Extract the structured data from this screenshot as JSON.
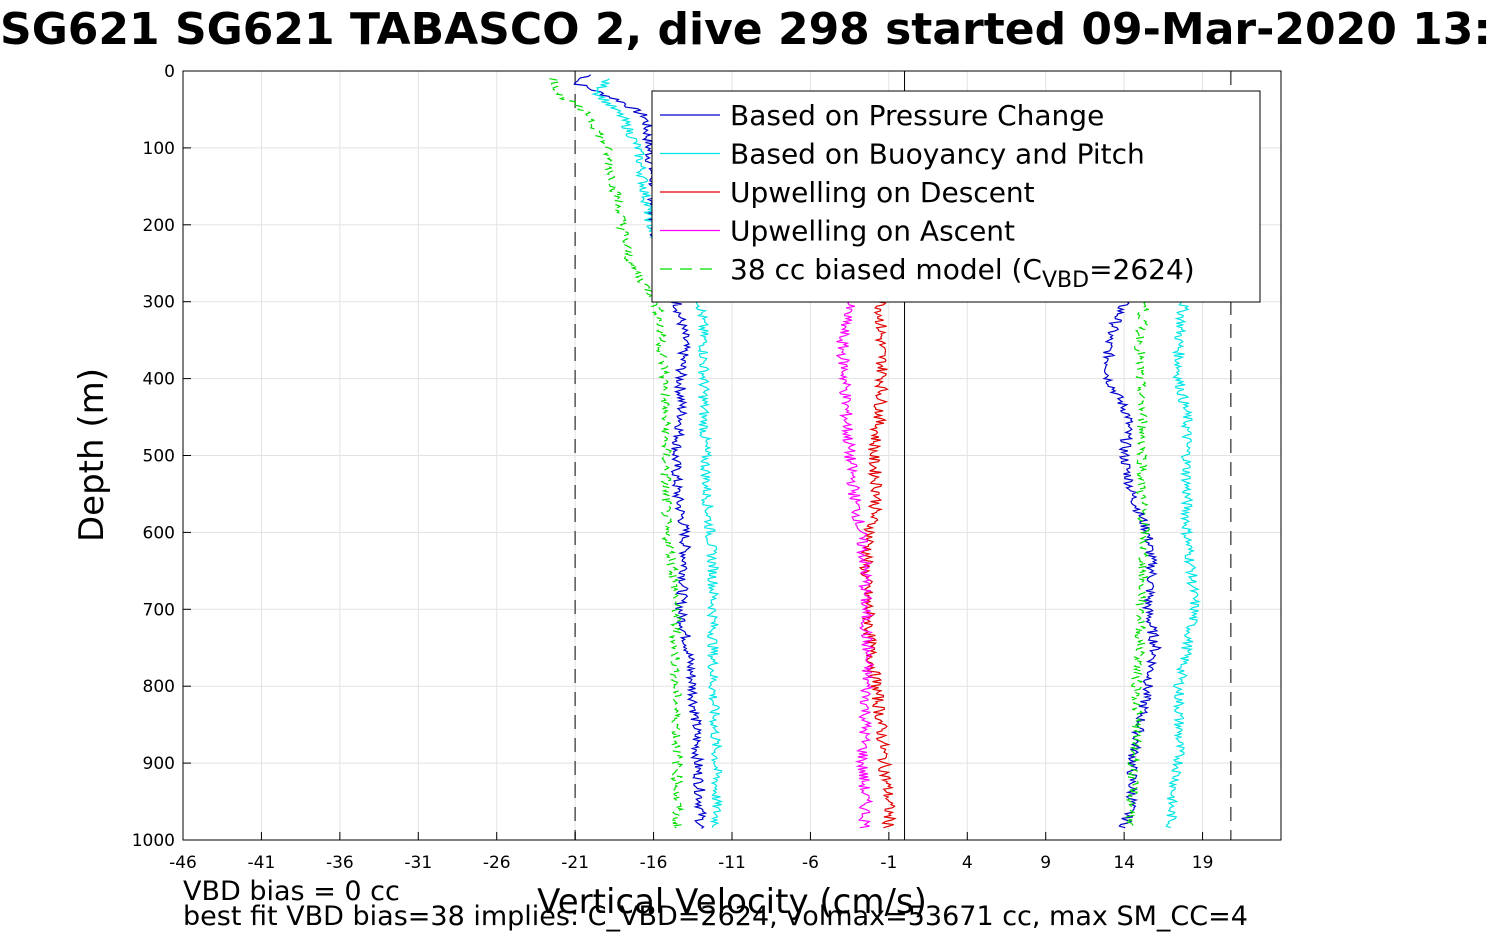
{
  "title": "SG621 SG621 TABASCO 2, dive 298 started 09-Mar-2020 13:",
  "notes": {
    "bias": "VBD bias = 0 cc",
    "bestfit": "best fit VBD bias=38 implies: C_VBD=2624, volmax=53671 cc, max SM_CC=4"
  },
  "chart_data": {
    "type": "line",
    "title": "SG621 SG621 TABASCO 2, dive 298 started 09-Mar-2020 13:",
    "xlabel": "Vertical Velocity (cm/s)",
    "ylabel": "Depth (m)",
    "xlim": [
      -46,
      24
    ],
    "ylim": [
      0,
      1000
    ],
    "y_reversed": true,
    "x_ticks": [
      "-46",
      "-41",
      "-36",
      "-31",
      "-26",
      "-21",
      "-16",
      "-11",
      "-6",
      "-1",
      "4",
      "9",
      "14",
      "19"
    ],
    "y_ticks": [
      "0",
      "100",
      "200",
      "300",
      "400",
      "500",
      "600",
      "700",
      "800",
      "900",
      "1000"
    ],
    "grid": true,
    "legend_position": "top-right",
    "reference_lines": {
      "vertical_solid_x": 0,
      "vertical_dashed_x": [
        -21,
        20.8
      ]
    },
    "series": [
      {
        "name": "Based on Pressure Change",
        "color": "#0000cc",
        "style": "solid",
        "descent": {
          "y": [
            5,
            15,
            40,
            60,
            100,
            150,
            200,
            250,
            300,
            350,
            400,
            450,
            500,
            550,
            600,
            650,
            700,
            750,
            800,
            850,
            900,
            950,
            985
          ],
          "x": [
            -20,
            -21,
            -18,
            -16.5,
            -16.3,
            -16,
            -16,
            -15.5,
            -14.5,
            -14,
            -14.3,
            -14.2,
            -14.6,
            -14.5,
            -14,
            -14,
            -14.3,
            -13.8,
            -13.5,
            -13.3,
            -13.2,
            -13,
            -13
          ]
        },
        "ascent": {
          "y": [
            985,
            950,
            900,
            850,
            800,
            750,
            700,
            650,
            600,
            550,
            500,
            450,
            400,
            350,
            300
          ],
          "x": [
            14,
            14.5,
            14.5,
            15,
            15.5,
            16,
            15.5,
            15.8,
            15.5,
            14.5,
            14,
            14.3,
            13,
            13,
            14
          ]
        }
      },
      {
        "name": "Based on Buoyancy and Pitch",
        "color": "#00e5e5",
        "style": "solid",
        "descent": {
          "y": [
            10,
            30,
            60,
            100,
            150,
            200,
            250,
            300,
            350,
            400,
            450,
            500,
            550,
            600,
            650,
            700,
            750,
            800,
            850,
            900,
            950,
            985
          ],
          "x": [
            -19,
            -19.5,
            -18,
            -17,
            -16.6,
            -16.2,
            -15.5,
            -13,
            -12.8,
            -12.8,
            -12.8,
            -12.7,
            -12.6,
            -12.4,
            -12.2,
            -12.2,
            -12.2,
            -12.2,
            -12.1,
            -12,
            -12,
            -12
          ]
        },
        "ascent": {
          "y": [
            985,
            950,
            900,
            850,
            800,
            750,
            700,
            650,
            600,
            550,
            500,
            450,
            400,
            350,
            300
          ],
          "x": [
            17,
            17,
            17.5,
            17.5,
            17.5,
            18,
            18.5,
            18.3,
            18,
            18,
            18,
            18,
            17.5,
            17.5,
            17.8
          ]
        }
      },
      {
        "name": "Upwelling on Descent",
        "color": "#e00000",
        "style": "solid",
        "y": [
          300,
          350,
          400,
          450,
          500,
          550,
          600,
          650,
          700,
          750,
          800,
          850,
          900,
          950,
          985
        ],
        "x": [
          -1.5,
          -1.5,
          -1.4,
          -1.6,
          -2,
          -1.7,
          -2.2,
          -2.5,
          -2.3,
          -2.2,
          -1.8,
          -1.5,
          -1.3,
          -1,
          -1
        ]
      },
      {
        "name": "Upwelling on Ascent",
        "color": "#ff00ff",
        "style": "solid",
        "y": [
          300,
          350,
          400,
          450,
          500,
          550,
          600,
          650,
          700,
          750,
          800,
          850,
          900,
          950,
          985
        ],
        "x": [
          -3.5,
          -4,
          -3.8,
          -3.7,
          -3.5,
          -3.2,
          -2.8,
          -2.5,
          -2.5,
          -2.4,
          -2.4,
          -2.5,
          -2.7,
          -2.5,
          -2.5
        ]
      },
      {
        "name": "38 cc biased model (C_VBD=2624)",
        "color": "#00dd00",
        "style": "dashed",
        "descent": {
          "y": [
            10,
            30,
            60,
            100,
            150,
            200,
            250,
            300,
            350,
            400,
            450,
            500,
            550,
            600,
            650,
            700,
            750,
            800,
            850,
            900,
            950,
            985
          ],
          "x": [
            -22.3,
            -22,
            -20,
            -19,
            -18.5,
            -18,
            -17.5,
            -15.8,
            -15.5,
            -15.3,
            -15.3,
            -15.2,
            -15.2,
            -15.2,
            -14.7,
            -14.6,
            -14.6,
            -14.6,
            -14.5,
            -14.5,
            -14.5,
            -14.5
          ]
        },
        "ascent": {
          "y": [
            985,
            950,
            900,
            850,
            800,
            750,
            700,
            650,
            600,
            550,
            500,
            450,
            400,
            350,
            300
          ],
          "x": [
            14.3,
            14.5,
            14.6,
            14.8,
            14.8,
            15,
            15.1,
            15.2,
            15.3,
            15.1,
            15.2,
            15.2,
            15,
            15,
            15.3
          ]
        }
      }
    ],
    "legend": [
      {
        "label": "Based on Pressure Change",
        "color": "#0000cc",
        "dash": ""
      },
      {
        "label": "Based on Buoyancy and Pitch",
        "color": "#00e5e5",
        "dash": ""
      },
      {
        "label": "Upwelling on Descent",
        "color": "#e00000",
        "dash": ""
      },
      {
        "label": "Upwelling on Ascent",
        "color": "#ff00ff",
        "dash": ""
      },
      {
        "label": "38 cc biased model (C",
        "sub": "VBD",
        "suffix": "=2624)",
        "color": "#00dd00",
        "dash": "12,8"
      }
    ]
  }
}
